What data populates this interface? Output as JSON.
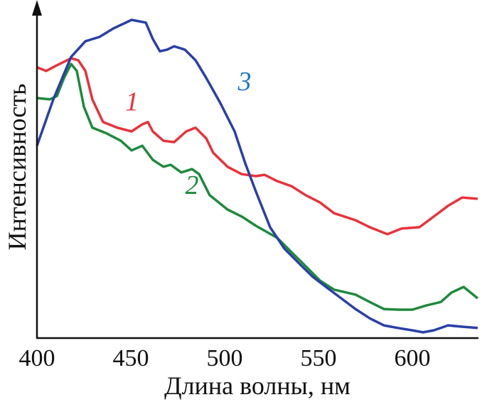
{
  "chart_data": {
    "type": "line",
    "title": "",
    "xlabel": "Длина волны, нм",
    "ylabel": "Интенсивность",
    "xlim": [
      400,
      635
    ],
    "ylim": [
      0,
      100
    ],
    "xticks": [
      "400",
      "450",
      "500",
      "550",
      "600"
    ],
    "yticks": [],
    "grid": false,
    "series": [
      {
        "name": "1",
        "color": "#e8323a",
        "label_color": "#e8323a",
        "label_at": [
          447,
          68
        ],
        "x": [
          400,
          404.9,
          410.6,
          418.2,
          422,
          425.8,
          429.5,
          435.2,
          442.8,
          450.4,
          456.1,
          459.1,
          461.7,
          467.4,
          473.1,
          479.5,
          484.5,
          490.2,
          493.9,
          501.5,
          509.1,
          516.7,
          521.2,
          528,
          535.6,
          543.2,
          550.8,
          558.3,
          569.7,
          577.3,
          586.7,
          594.3,
          603.8,
          611.4,
          619,
          626.5,
          634.8
        ],
        "y": [
          80.9,
          79.8,
          81.5,
          83.6,
          83.0,
          79.8,
          71.3,
          64.5,
          62.8,
          61.7,
          63.8,
          64.5,
          61.7,
          58.9,
          58.5,
          61.7,
          62.8,
          59.6,
          55.3,
          51.1,
          48.9,
          48.3,
          48.7,
          46.8,
          45.3,
          42.6,
          40.4,
          37.2,
          35.1,
          33,
          30.9,
          32.6,
          33,
          36.2,
          39.4,
          41.9,
          41.5
        ]
      },
      {
        "name": "2",
        "color": "#1e8a3c",
        "label_color": "#1e8a3c",
        "label_at": [
          479,
          43
        ],
        "x": [
          400,
          406.8,
          410.6,
          414.4,
          418.2,
          421.2,
          425,
          429.5,
          437.1,
          444.7,
          450.4,
          456.1,
          461.7,
          467.4,
          471.2,
          476.9,
          482.6,
          486.4,
          492,
          501.5,
          509.1,
          516.7,
          528,
          535.6,
          543.2,
          550.8,
          558.3,
          569.7,
          577.3,
          584.8,
          592.4,
          600,
          607.6,
          615.2,
          620.8,
          627.3,
          634.8
        ],
        "y": [
          71.7,
          71.3,
          72.3,
          77.7,
          81.9,
          79.8,
          69.1,
          62.8,
          61.1,
          58.9,
          56,
          57.4,
          53.2,
          51.1,
          51.7,
          49.4,
          50.4,
          48.9,
          42.6,
          38.3,
          36.2,
          33.4,
          29.8,
          25.5,
          21.3,
          17,
          14.3,
          12.8,
          10.6,
          8.5,
          8.3,
          8.3,
          9.6,
          10.6,
          13.4,
          15.1,
          11.7
        ]
      },
      {
        "name": "3",
        "color": "#2a3fa8",
        "label_color": "#1f7ac6",
        "label_at": [
          507,
          74
        ],
        "x": [
          400,
          408.7,
          418.2,
          425.8,
          433.3,
          440.9,
          450.4,
          458,
          461.7,
          465.5,
          469.3,
          473.1,
          478.8,
          484.5,
          490.2,
          497.7,
          505.3,
          511,
          516.7,
          524.2,
          531.8,
          539.4,
          547,
          554.5,
          562.1,
          569.7,
          577.3,
          584.8,
          592.4,
          600,
          605.7,
          611.4,
          619,
          626.5,
          634.8
        ],
        "y": [
          57.4,
          71.3,
          84,
          88.7,
          90,
          92.6,
          95.1,
          94.3,
          89.4,
          85.7,
          86.2,
          87.2,
          86.2,
          83,
          77.7,
          70.2,
          61.7,
          52.1,
          43.6,
          33,
          26.6,
          22.3,
          18.1,
          14.9,
          11.7,
          8.5,
          5.7,
          3.6,
          2.8,
          2.1,
          1.5,
          2.1,
          3.6,
          3.2,
          2.8
        ]
      }
    ]
  }
}
